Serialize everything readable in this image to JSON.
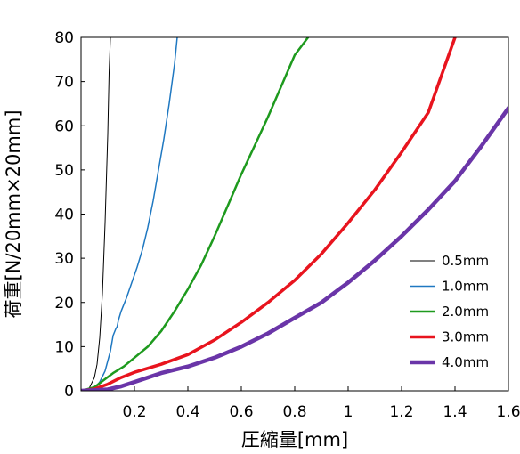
{
  "chart_data": {
    "type": "line",
    "xlabel": "圧縮量[mm]",
    "ylabel": "荷重[N/20mm×20mm]",
    "xlim": [
      0,
      1.6
    ],
    "ylim": [
      0,
      80
    ],
    "xticks": [
      0.2,
      0.4,
      0.6,
      0.8,
      1,
      1.2,
      1.4,
      1.6
    ],
    "xtick_labels": [
      "0.2",
      "0.4",
      "0.6",
      "0.8",
      "1",
      "1.2",
      "1.4",
      "1.6"
    ],
    "yticks": [
      0,
      10,
      20,
      30,
      40,
      50,
      60,
      70,
      80
    ],
    "ytick_labels": [
      "0",
      "10",
      "20",
      "30",
      "40",
      "50",
      "60",
      "70",
      "80"
    ],
    "grid": false,
    "legend_position": "bottom-right",
    "series": [
      {
        "name": "0.5mm",
        "color": "#000000",
        "width": 1,
        "x": [
          0.0,
          0.03,
          0.05,
          0.06,
          0.07,
          0.08,
          0.09,
          0.1,
          0.105,
          0.11
        ],
        "y": [
          0,
          0.5,
          3,
          6,
          12,
          22,
          38,
          58,
          72,
          80
        ]
      },
      {
        "name": "1.0mm",
        "color": "#1f78c1",
        "width": 1.5,
        "x": [
          0.0,
          0.05,
          0.07,
          0.09,
          0.11,
          0.12,
          0.13,
          0.135,
          0.14,
          0.15,
          0.17,
          0.19,
          0.21,
          0.23,
          0.25,
          0.27,
          0.29,
          0.31,
          0.33,
          0.35,
          0.36
        ],
        "y": [
          0,
          0.5,
          2,
          4.5,
          9,
          12.5,
          14,
          14.5,
          16,
          18,
          21,
          24.5,
          28,
          32,
          37,
          43,
          50,
          57,
          65,
          74,
          80
        ]
      },
      {
        "name": "2.0mm",
        "color": "#1e9a1e",
        "width": 2.5,
        "x": [
          0.0,
          0.05,
          0.08,
          0.12,
          0.16,
          0.2,
          0.25,
          0.3,
          0.35,
          0.4,
          0.45,
          0.5,
          0.55,
          0.6,
          0.65,
          0.7,
          0.75,
          0.8,
          0.85
        ],
        "y": [
          0,
          0.8,
          2.2,
          4,
          5.5,
          7.5,
          10,
          13.5,
          18,
          23,
          28.5,
          35,
          42,
          49,
          55.5,
          62,
          69,
          76,
          80
        ]
      },
      {
        "name": "3.0mm",
        "color": "#e8141e",
        "width": 3.5,
        "x": [
          0.0,
          0.05,
          0.1,
          0.15,
          0.2,
          0.3,
          0.4,
          0.5,
          0.6,
          0.7,
          0.8,
          0.9,
          1.0,
          1.1,
          1.2,
          1.3,
          1.4
        ],
        "y": [
          0,
          0.4,
          1.5,
          3,
          4.2,
          6,
          8.2,
          11.5,
          15.5,
          20,
          25,
          31,
          38,
          45.5,
          54,
          63,
          80
        ]
      },
      {
        "name": "4.0mm",
        "color": "#6a35a8",
        "width": 4.5,
        "x": [
          0.0,
          0.1,
          0.15,
          0.2,
          0.3,
          0.4,
          0.5,
          0.6,
          0.7,
          0.8,
          0.9,
          1.0,
          1.1,
          1.2,
          1.3,
          1.4,
          1.5,
          1.6
        ],
        "y": [
          0,
          0.3,
          1,
          2,
          4,
          5.5,
          7.5,
          10,
          13,
          16.5,
          20,
          24.5,
          29.5,
          35,
          41,
          47.5,
          55.5,
          64
        ]
      }
    ]
  }
}
